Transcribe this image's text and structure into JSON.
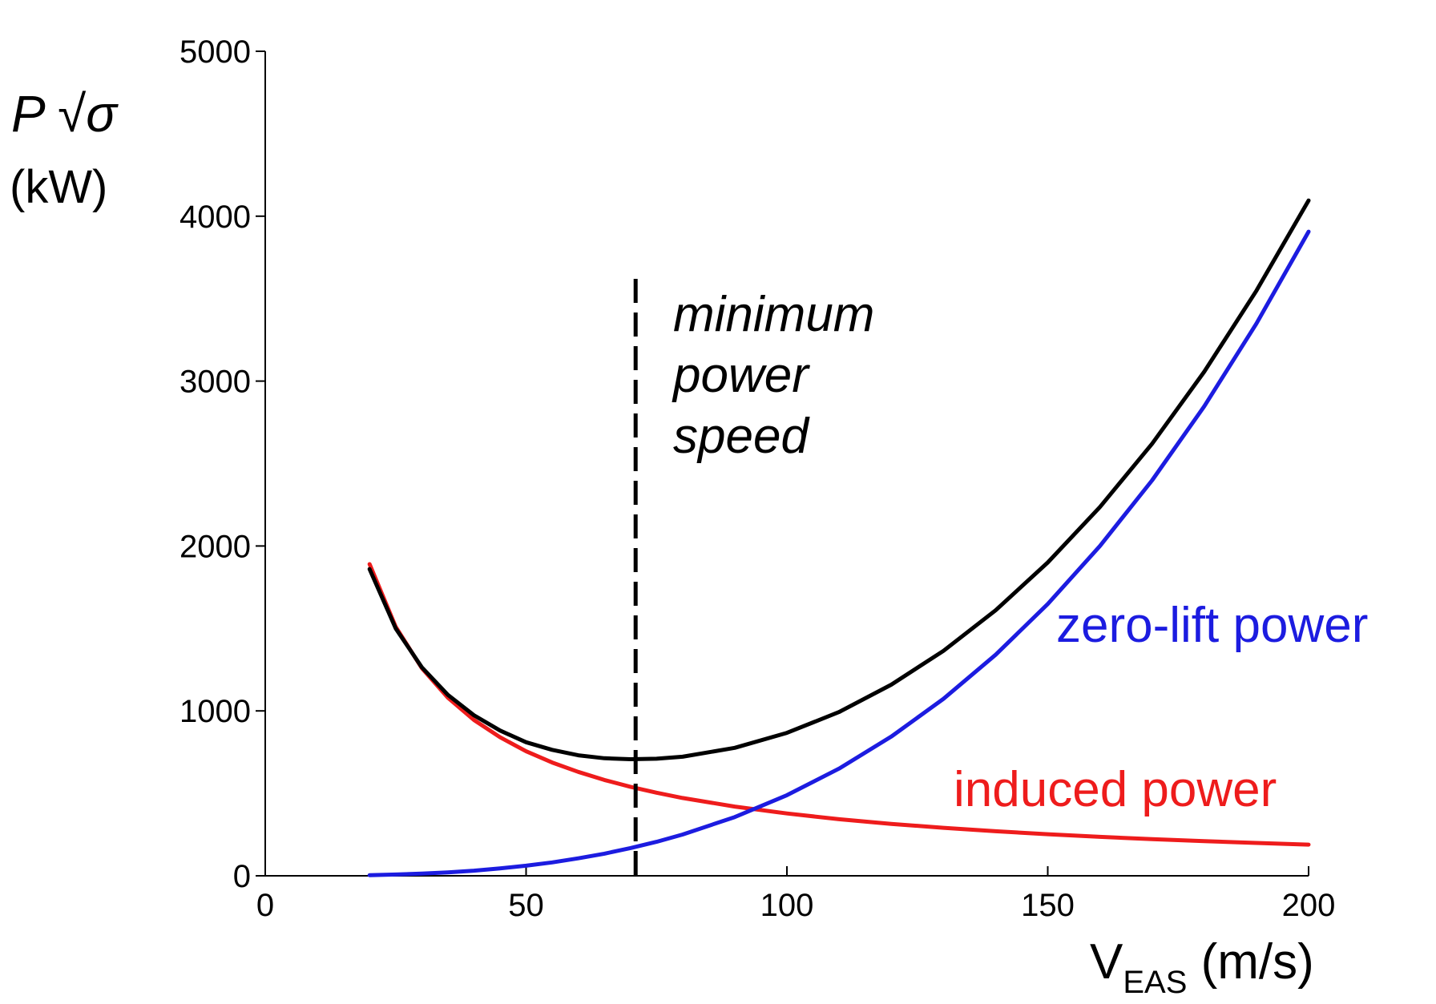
{
  "chart_data": {
    "type": "line",
    "ylabel_symbol": "P √σ",
    "ylabel_unit": "(kW)",
    "xlabel_main": "V",
    "xlabel_sub": "EAS",
    "xlabel_unit": " (m/s)",
    "xlim": [
      0,
      200
    ],
    "ylim": [
      0,
      5000
    ],
    "xticks": [
      0,
      50,
      100,
      150,
      200
    ],
    "yticks": [
      0,
      1000,
      2000,
      3000,
      4000,
      5000
    ],
    "grid": false,
    "series": [
      {
        "name": "induced power",
        "color": "#ee1c1c",
        "x": [
          20,
          25,
          30,
          35,
          40,
          45,
          50,
          55,
          60,
          65,
          70,
          75,
          80,
          90,
          100,
          110,
          120,
          130,
          140,
          150,
          160,
          170,
          180,
          190,
          200
        ],
        "y": [
          1890,
          1510,
          1260,
          1080,
          945,
          840,
          755,
          687,
          630,
          581,
          540,
          504,
          472,
          420,
          378,
          343,
          315,
          291,
          270,
          252,
          236,
          222,
          210,
          199,
          189
        ]
      },
      {
        "name": "zero-lift power",
        "color": "#1c1ce0",
        "x": [
          20,
          25,
          30,
          35,
          40,
          45,
          50,
          55,
          60,
          65,
          70,
          75,
          80,
          90,
          100,
          110,
          120,
          130,
          140,
          150,
          160,
          170,
          180,
          190,
          200
        ],
        "y": [
          4,
          8,
          13,
          21,
          31,
          45,
          61,
          81,
          106,
          134,
          168,
          206,
          250,
          356,
          489,
          650,
          844,
          1073,
          1340,
          1648,
          2000,
          2398,
          2847,
          3349,
          3906
        ]
      },
      {
        "color": "#000000",
        "x": [
          20,
          25,
          30,
          35,
          40,
          45,
          50,
          55,
          60,
          65,
          70,
          75,
          80,
          90,
          100,
          110,
          120,
          130,
          140,
          150,
          160,
          170,
          180,
          190,
          200
        ],
        "y": [
          1860,
          1500,
          1265,
          1097,
          974,
          881,
          810,
          764,
          731,
          713,
          707,
          710,
          722,
          776,
          867,
          993,
          1159,
          1364,
          1610,
          1900,
          2236,
          2620,
          3057,
          3548,
          4095
        ]
      }
    ],
    "vline": {
      "x": 71,
      "y_top": 3620,
      "style": "dashed",
      "color": "#000000"
    },
    "annotations": {
      "minimum": [
        "minimum",
        "power",
        "speed"
      ],
      "zero_lift": "zero-lift power",
      "induced": "induced power"
    }
  }
}
